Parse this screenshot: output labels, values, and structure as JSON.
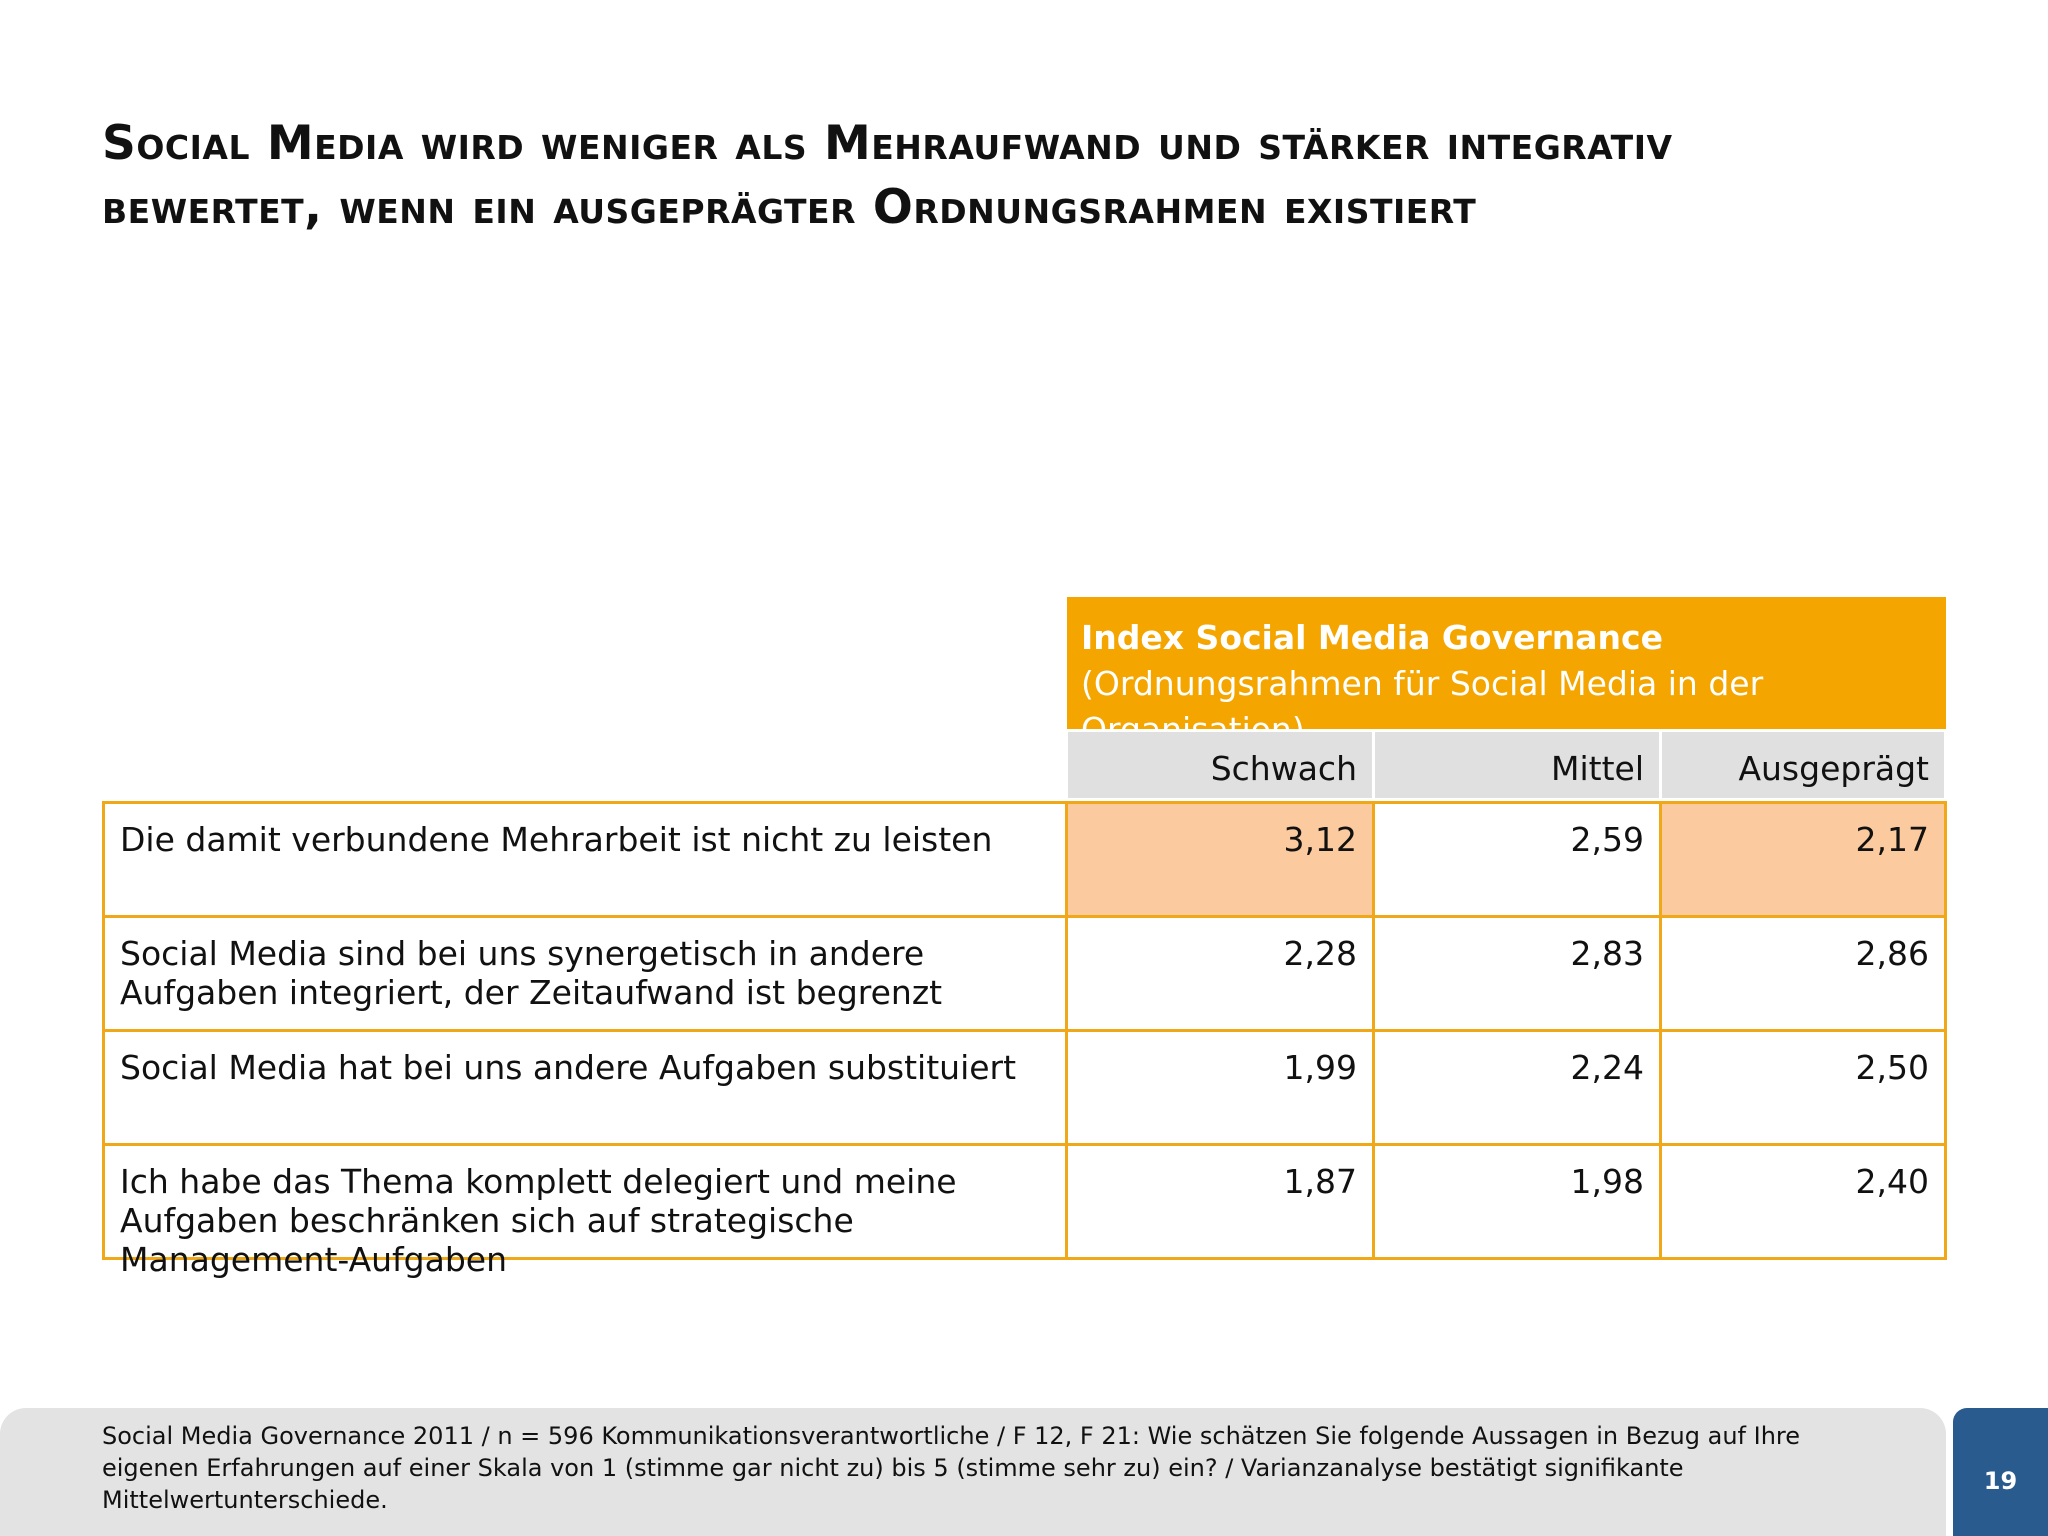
{
  "header": {
    "title": "Social Media wird weniger als Mehraufwand und stärker integrativ bewertet, wenn ein ausgeprägter Ordnungsrahmen existiert"
  },
  "table": {
    "group_title": "Index Social Media Governance",
    "group_subtitle": "(Ordnungsrahmen für Social Media in der Organisation)",
    "columns": [
      "Schwach",
      "Mittel",
      "Ausgeprägt"
    ],
    "rows": [
      {
        "label": "Die damit verbundene Mehrarbeit ist nicht zu leisten",
        "values": [
          "3,12",
          "2,59",
          "2,17"
        ],
        "highlight": [
          true,
          false,
          true
        ]
      },
      {
        "label": "Social Media sind bei uns synergetisch in andere Aufgaben integriert, der Zeitaufwand ist begrenzt",
        "values": [
          "2,28",
          "2,83",
          "2,86"
        ],
        "highlight": [
          false,
          false,
          false
        ]
      },
      {
        "label": "Social Media hat bei uns andere Aufgaben substituiert",
        "values": [
          "1,99",
          "2,24",
          "2,50"
        ],
        "highlight": [
          false,
          false,
          false
        ]
      },
      {
        "label": "Ich habe das Thema komplett delegiert und meine Aufgaben beschränken sich auf strategische Management-Aufgaben",
        "values": [
          "1,87",
          "1,98",
          "2,40"
        ],
        "highlight": [
          false,
          false,
          false
        ]
      }
    ]
  },
  "footer": {
    "source": "Social Media Governance 2011 / n = 596 Kommunikationsverantwortliche / F 12, F 21: Wie schätzen Sie folgende Aussagen in Bezug auf Ihre eigenen Erfahrungen auf einer Skala von 1 (stimme gar nicht zu) bis 5 (stimme sehr zu) ein? / Varianzanalyse bestätigt signifikante Mittelwertunterschiede.",
    "page_number": "19"
  }
}
